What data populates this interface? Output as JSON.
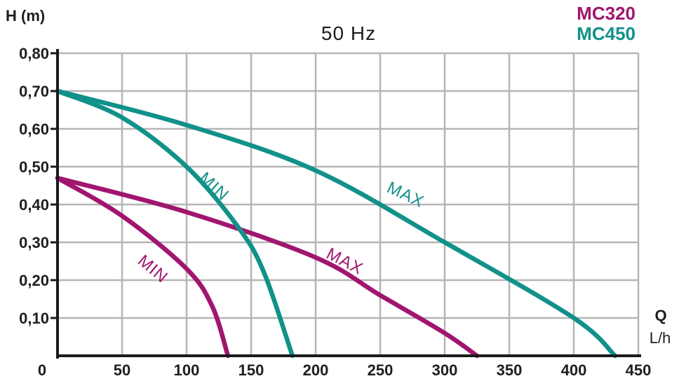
{
  "chart_data": {
    "type": "line",
    "title": "50 Hz",
    "ylabel": "H (m)",
    "xlabel": "Q",
    "xunit": "L/h",
    "xlim": [
      0,
      450
    ],
    "ylim": [
      0,
      0.8
    ],
    "x_ticks": [
      "0",
      "50",
      "100",
      "150",
      "200",
      "250",
      "300",
      "350",
      "400",
      "450"
    ],
    "y_ticks": [
      "0,10",
      "0,20",
      "0,30",
      "0,40",
      "0,50",
      "0,60",
      "0,70",
      "0,80"
    ],
    "grid": true,
    "legend": [
      {
        "name": "MC320",
        "color": "#a0166f"
      },
      {
        "name": "MC450",
        "color": "#11918a"
      }
    ],
    "series": [
      {
        "name": "MC320 MIN",
        "label": "MIN",
        "color": "#a0166f",
        "points": [
          [
            0,
            0.47
          ],
          [
            50,
            0.37
          ],
          [
            100,
            0.23
          ],
          [
            120,
            0.13
          ],
          [
            132,
            0.0
          ]
        ]
      },
      {
        "name": "MC320 MAX",
        "label": "MAX",
        "color": "#a0166f",
        "points": [
          [
            0,
            0.47
          ],
          [
            100,
            0.38
          ],
          [
            200,
            0.26
          ],
          [
            250,
            0.16
          ],
          [
            300,
            0.06
          ],
          [
            325,
            0.0
          ]
        ]
      },
      {
        "name": "MC450 MIN",
        "label": "MIN",
        "color": "#11918a",
        "points": [
          [
            0,
            0.7
          ],
          [
            50,
            0.63
          ],
          [
            100,
            0.5
          ],
          [
            140,
            0.34
          ],
          [
            160,
            0.22
          ],
          [
            182,
            0.0
          ]
        ]
      },
      {
        "name": "MC450 MAX",
        "label": "MAX",
        "color": "#11918a",
        "points": [
          [
            0,
            0.7
          ],
          [
            100,
            0.61
          ],
          [
            200,
            0.49
          ],
          [
            300,
            0.3
          ],
          [
            400,
            0.1
          ],
          [
            432,
            0.0
          ]
        ]
      }
    ]
  }
}
